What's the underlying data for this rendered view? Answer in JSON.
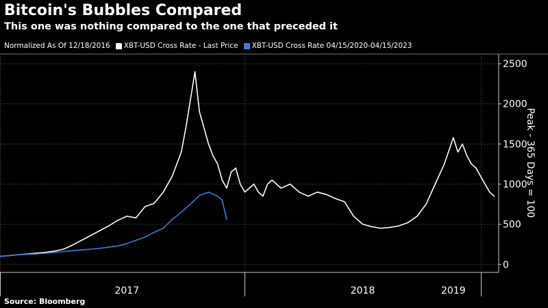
{
  "header": {
    "title": "Bitcoin's Bubbles Compared",
    "subtitle": "This one was nothing compared to the one that preceded it"
  },
  "legend": {
    "note": "Normalized As Of 12/18/2016",
    "items": [
      {
        "label": "XBT-USD Cross Rate - Last Price",
        "color": "#ffffff"
      },
      {
        "label": "XBT-USD Cross Rate 04/15/2020-04/15/2023",
        "color": "#3a7fd5"
      }
    ]
  },
  "source": "Source: Bloomberg",
  "chart_data": {
    "type": "line",
    "title": "Bitcoin's Bubbles Compared",
    "subtitle": "This one was nothing compared to the one that preceded it",
    "ylabel": "Peak - 365 Days = 100",
    "xlabel": "",
    "ylim": [
      -100,
      2620
    ],
    "xlim": [
      0,
      110
    ],
    "yticks": [
      0,
      500,
      1000,
      1500,
      2000,
      2500
    ],
    "x_units": "weeks since 12/18/2016",
    "x_tick_marks": [
      0,
      54,
      106
    ],
    "x_tick_labels": [
      {
        "label": "2017",
        "x": 28
      },
      {
        "label": "2018",
        "x": 80
      },
      {
        "label": "2019",
        "x": 100
      }
    ],
    "grid": true,
    "series": [
      {
        "name": "XBT-USD Cross Rate - Last Price",
        "color": "#ffffff",
        "x": [
          0,
          2,
          4,
          6,
          8,
          10,
          12,
          14,
          16,
          18,
          20,
          22,
          24,
          26,
          28,
          30,
          32,
          34,
          36,
          38,
          40,
          41,
          42,
          43,
          44,
          45,
          46,
          47,
          48,
          49,
          50,
          51,
          52,
          53,
          54,
          55,
          56,
          57,
          58,
          59,
          60,
          62,
          64,
          66,
          68,
          70,
          72,
          74,
          76,
          78,
          80,
          82,
          84,
          86,
          88,
          90,
          92,
          94,
          96,
          98,
          100,
          101,
          102,
          103,
          104,
          105,
          106,
          107,
          108,
          109
        ],
        "values": [
          100,
          110,
          120,
          130,
          140,
          150,
          165,
          190,
          240,
          300,
          360,
          420,
          480,
          550,
          600,
          580,
          720,
          760,
          900,
          1100,
          1400,
          1700,
          2050,
          2400,
          1900,
          1700,
          1500,
          1350,
          1250,
          1050,
          950,
          1150,
          1200,
          1000,
          900,
          950,
          1000,
          900,
          850,
          1000,
          1050,
          950,
          1000,
          900,
          850,
          900,
          870,
          820,
          780,
          600,
          500,
          470,
          450,
          460,
          480,
          520,
          600,
          750,
          1000,
          1250,
          1580,
          1400,
          1500,
          1350,
          1250,
          1200,
          1100,
          1000,
          900,
          850
        ]
      },
      {
        "name": "XBT-USD Cross Rate 04/15/2020-04/15/2023",
        "color": "#3a7fd5",
        "x": [
          0,
          2,
          4,
          6,
          8,
          10,
          12,
          14,
          16,
          18,
          20,
          22,
          24,
          26,
          28,
          30,
          32,
          34,
          36,
          38,
          40,
          42,
          44,
          46,
          48,
          49,
          50
        ],
        "values": [
          100,
          110,
          120,
          125,
          130,
          140,
          150,
          160,
          170,
          180,
          190,
          200,
          215,
          230,
          260,
          300,
          340,
          400,
          450,
          560,
          650,
          750,
          860,
          900,
          850,
          800,
          560
        ]
      }
    ]
  }
}
